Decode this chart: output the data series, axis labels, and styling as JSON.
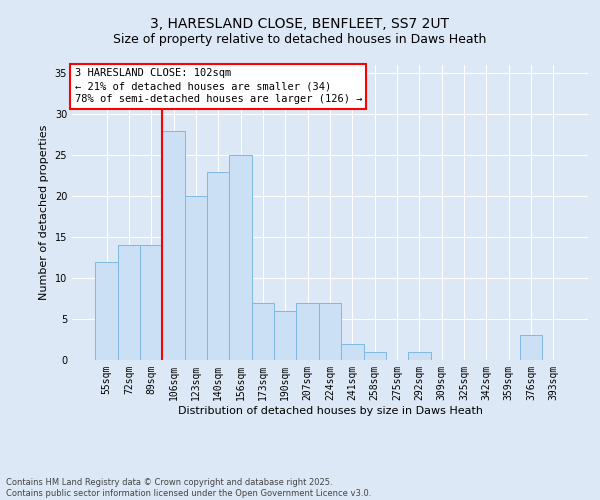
{
  "title1": "3, HARESLAND CLOSE, BENFLEET, SS7 2UT",
  "title2": "Size of property relative to detached houses in Daws Heath",
  "xlabel": "Distribution of detached houses by size in Daws Heath",
  "ylabel": "Number of detached properties",
  "categories": [
    "55sqm",
    "72sqm",
    "89sqm",
    "106sqm",
    "123sqm",
    "140sqm",
    "156sqm",
    "173sqm",
    "190sqm",
    "207sqm",
    "224sqm",
    "241sqm",
    "258sqm",
    "275sqm",
    "292sqm",
    "309sqm",
    "325sqm",
    "342sqm",
    "359sqm",
    "376sqm",
    "393sqm"
  ],
  "values": [
    12,
    14,
    14,
    28,
    20,
    23,
    25,
    7,
    6,
    7,
    7,
    2,
    1,
    0,
    1,
    0,
    0,
    0,
    0,
    3,
    0
  ],
  "bar_color": "#cce0f5",
  "bar_edge_color": "#7fb8e0",
  "vline_color": "red",
  "annotation_text": "3 HARESLAND CLOSE: 102sqm\n← 21% of detached houses are smaller (34)\n78% of semi-detached houses are larger (126) →",
  "annotation_box_color": "white",
  "annotation_box_edge": "red",
  "ylim": [
    0,
    36
  ],
  "yticks": [
    0,
    5,
    10,
    15,
    20,
    25,
    30,
    35
  ],
  "background_color": "#dce8f5",
  "plot_bg_color": "#dce8f5",
  "footer": "Contains HM Land Registry data © Crown copyright and database right 2025.\nContains public sector information licensed under the Open Government Licence v3.0.",
  "title1_fontsize": 10,
  "title2_fontsize": 9,
  "xlabel_fontsize": 8,
  "ylabel_fontsize": 8,
  "tick_fontsize": 7,
  "annotation_fontsize": 7.5,
  "footer_fontsize": 6
}
